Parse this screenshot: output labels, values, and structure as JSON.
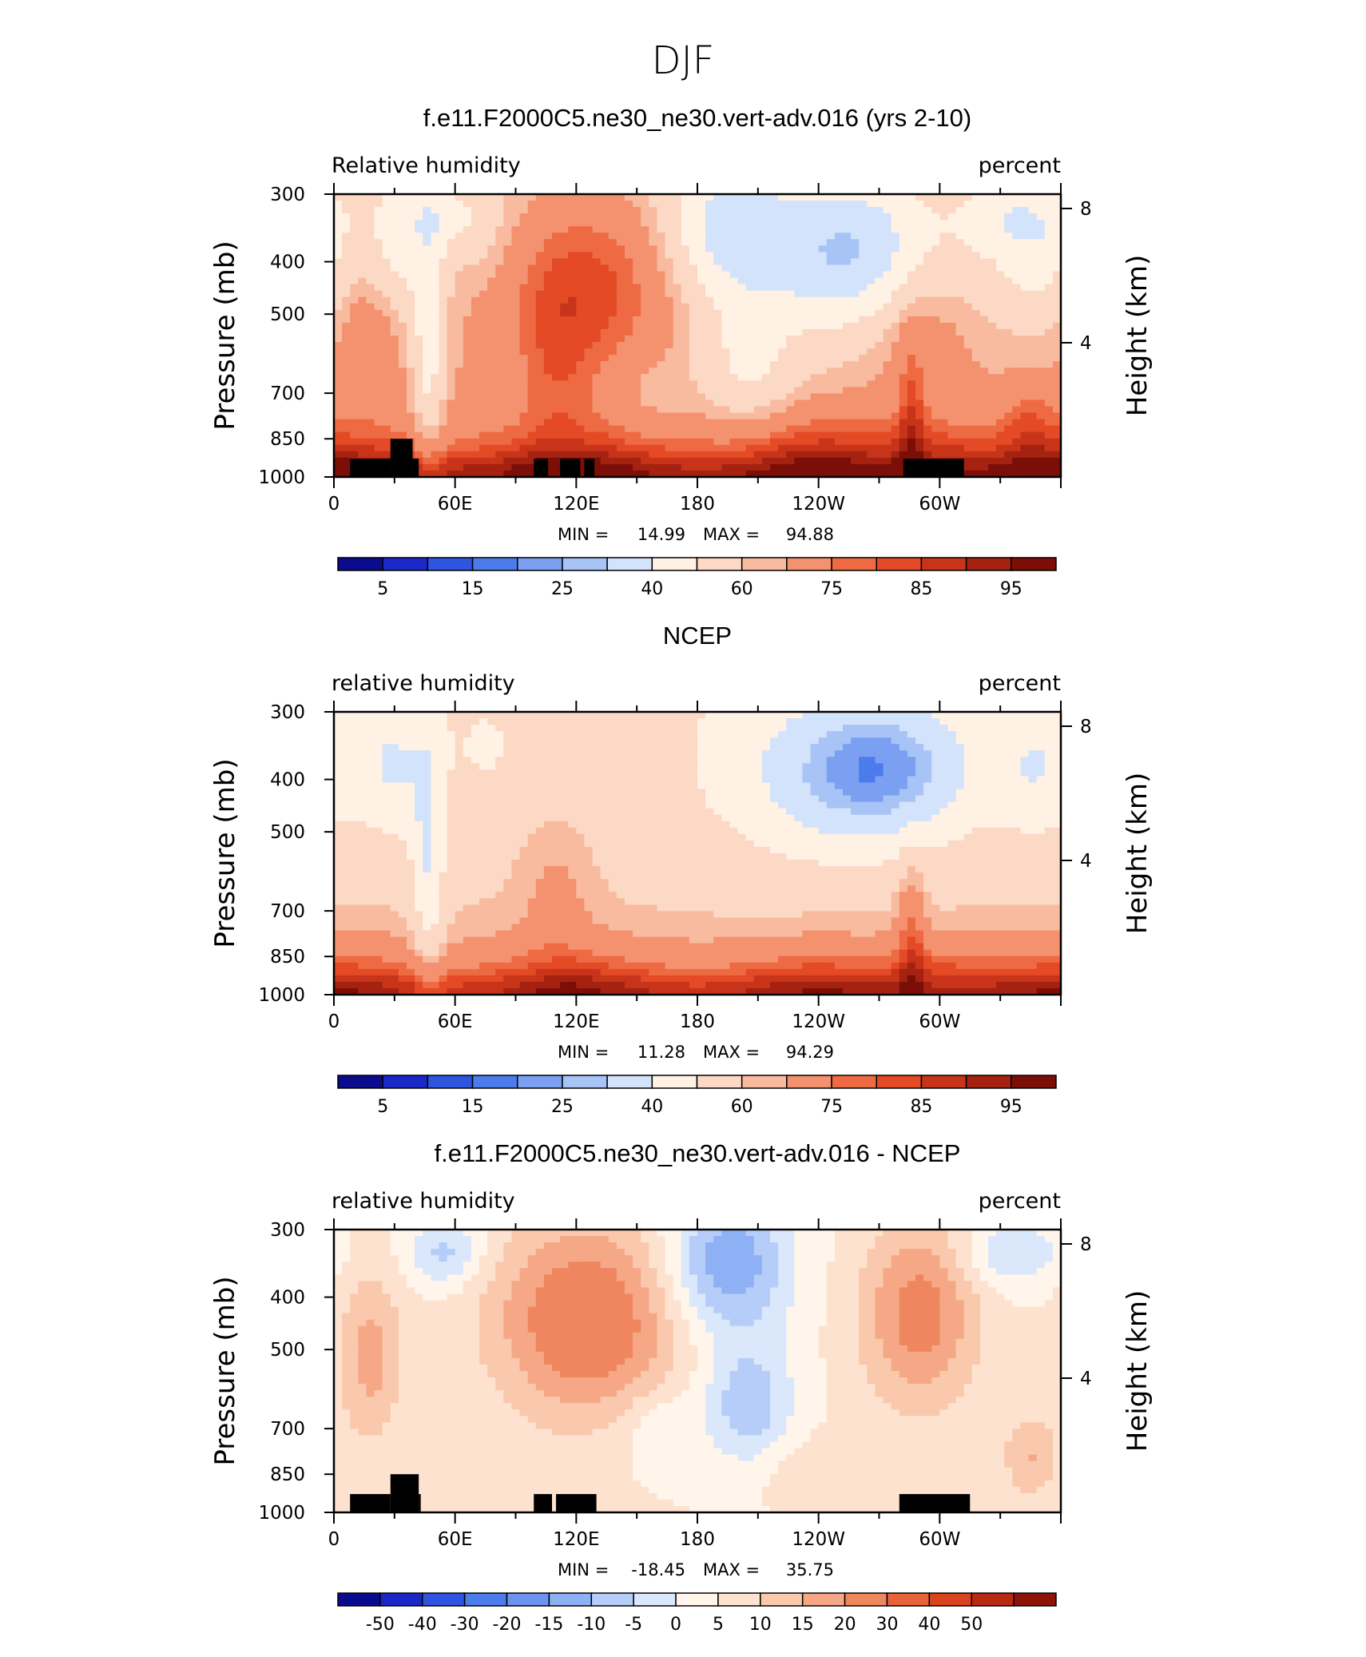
{
  "figure": {
    "title": "DJF"
  },
  "colors": {
    "rh_palette": [
      "#0b0b8e",
      "#1a28c8",
      "#2e55e0",
      "#4c7cec",
      "#7ba0f2",
      "#a8c3f6",
      "#d3e3fb",
      "#fff1e4",
      "#fcd9c4",
      "#f9bb9f",
      "#f4926f",
      "#ee6a43",
      "#e34a25",
      "#c8341a",
      "#a52210",
      "#7c0e08"
    ],
    "diff_palette": [
      "#0b0b8e",
      "#1a28c8",
      "#2e55e0",
      "#4c7cec",
      "#6b94f0",
      "#8eb0f4",
      "#b5cdf8",
      "#dbe8fc",
      "#fff5ea",
      "#fde2cf",
      "#fac8ac",
      "#f6a886",
      "#f0865f",
      "#e9623b",
      "#d9441f",
      "#b92a14",
      "#8e1408"
    ],
    "topography": "#000000"
  },
  "chart_data": [
    {
      "type": "heatmap",
      "title": "f.e11.F2000C5.ne30_ne30.vert-adv.016 (yrs 2-10)",
      "left_label": "Relative humidity",
      "right_label": "percent",
      "ylabel": "Pressure (mb)",
      "ylabel_right": "Height (km)",
      "xticks": [
        "0",
        "60E",
        "120E",
        "180",
        "120W",
        "60W"
      ],
      "xtick_values": [
        0,
        60,
        120,
        180,
        240,
        300
      ],
      "xlim": [
        0,
        360
      ],
      "yticks": [
        "300",
        "400",
        "500",
        "700",
        "850",
        "1000"
      ],
      "ytick_values": [
        300,
        400,
        500,
        700,
        850,
        1000
      ],
      "ylim": [
        1000,
        300
      ],
      "y_scale": "log-pressure",
      "right_yticks": [
        "4",
        "8"
      ],
      "right_ytick_values": [
        4,
        8
      ],
      "min_label": "MIN =",
      "min": "14.99",
      "max_label": "MAX =",
      "max": "94.88",
      "colorbar_labels": [
        "5",
        "15",
        "25",
        "40",
        "60",
        "75",
        "85",
        "95"
      ],
      "field": "rh_model",
      "topography": [
        [
          8,
          28,
          925
        ],
        [
          28,
          39,
          850
        ],
        [
          39,
          42,
          925
        ],
        [
          99,
          106,
          925
        ],
        [
          112,
          122,
          925
        ],
        [
          124,
          129,
          925
        ],
        [
          282,
          312,
          925
        ]
      ]
    },
    {
      "type": "heatmap",
      "title": "NCEP",
      "left_label": "relative humidity",
      "right_label": "percent",
      "ylabel": "Pressure (mb)",
      "ylabel_right": "Height (km)",
      "xticks": [
        "0",
        "60E",
        "120E",
        "180",
        "120W",
        "60W"
      ],
      "xtick_values": [
        0,
        60,
        120,
        180,
        240,
        300
      ],
      "xlim": [
        0,
        360
      ],
      "yticks": [
        "300",
        "400",
        "500",
        "700",
        "850",
        "1000"
      ],
      "ytick_values": [
        300,
        400,
        500,
        700,
        850,
        1000
      ],
      "ylim": [
        1000,
        300
      ],
      "y_scale": "log-pressure",
      "right_yticks": [
        "4",
        "8"
      ],
      "right_ytick_values": [
        4,
        8
      ],
      "min_label": "MIN =",
      "min": "11.28",
      "max_label": "MAX =",
      "max": "94.29",
      "colorbar_labels": [
        "5",
        "15",
        "25",
        "40",
        "60",
        "75",
        "85",
        "95"
      ],
      "field": "rh_obs",
      "topography": []
    },
    {
      "type": "heatmap",
      "title": "f.e11.F2000C5.ne30_ne30.vert-adv.016 - NCEP",
      "left_label": "relative humidity",
      "right_label": "percent",
      "ylabel": "Pressure (mb)",
      "ylabel_right": "Height (km)",
      "xticks": [
        "0",
        "60E",
        "120E",
        "180",
        "120W",
        "60W"
      ],
      "xtick_values": [
        0,
        60,
        120,
        180,
        240,
        300
      ],
      "xlim": [
        0,
        360
      ],
      "yticks": [
        "300",
        "400",
        "500",
        "700",
        "850",
        "1000"
      ],
      "ytick_values": [
        300,
        400,
        500,
        700,
        850,
        1000
      ],
      "ylim": [
        1000,
        300
      ],
      "y_scale": "log-pressure",
      "right_yticks": [
        "4",
        "8"
      ],
      "right_ytick_values": [
        4,
        8
      ],
      "min_label": "MIN =",
      "min": "-18.45",
      "max_label": "MAX =",
      "max": "35.75",
      "colorbar_labels": [
        "-50",
        "-40",
        "-30",
        "-20",
        "-15",
        "-10",
        "-5",
        "0",
        "5",
        "10",
        "15",
        "20",
        "30",
        "40",
        "50"
      ],
      "field": "rh_diff",
      "topography": [
        [
          8,
          28,
          925
        ],
        [
          28,
          42,
          850
        ],
        [
          42,
          43,
          925
        ],
        [
          99,
          108,
          925
        ],
        [
          110,
          130,
          925
        ],
        [
          280,
          315,
          925
        ]
      ]
    }
  ]
}
